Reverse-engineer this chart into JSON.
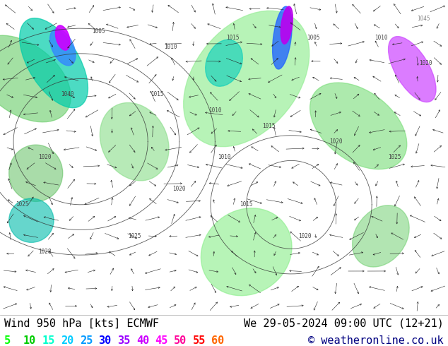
{
  "title_left": "Wind 950 hPa [kts] ECMWF",
  "title_right": "We 29-05-2024 09:00 UTC (12+21)",
  "copyright": "© weatheronline.co.uk",
  "legend_values": [
    5,
    10,
    15,
    20,
    25,
    30,
    35,
    40,
    45,
    50,
    55,
    60
  ],
  "legend_colors": [
    "#00ff00",
    "#00cc00",
    "#00ffcc",
    "#00ccff",
    "#0099ff",
    "#0000ff",
    "#9900ff",
    "#cc00ff",
    "#ff00ff",
    "#ff0099",
    "#ff0000",
    "#ff6600"
  ],
  "bg_color": "#ffffff",
  "map_bg_color": "#f0f0e8",
  "bottom_bar_color": "#ffffff",
  "text_color": "#000000",
  "copyright_color": "#000080",
  "title_fontsize": 11,
  "legend_fontsize": 11,
  "fig_width": 6.34,
  "fig_height": 4.9,
  "dpi": 100,
  "wind_colors": {
    "5": "#99ff99",
    "10": "#66ff66",
    "15": "#33dd33",
    "20": "#00cccc",
    "25": "#0099ff",
    "30": "#0055ff",
    "35": "#8800ff",
    "40": "#cc00cc",
    "45": "#ff00ff",
    "50": "#ff0066",
    "55": "#ff3300",
    "60": "#ff9900"
  }
}
